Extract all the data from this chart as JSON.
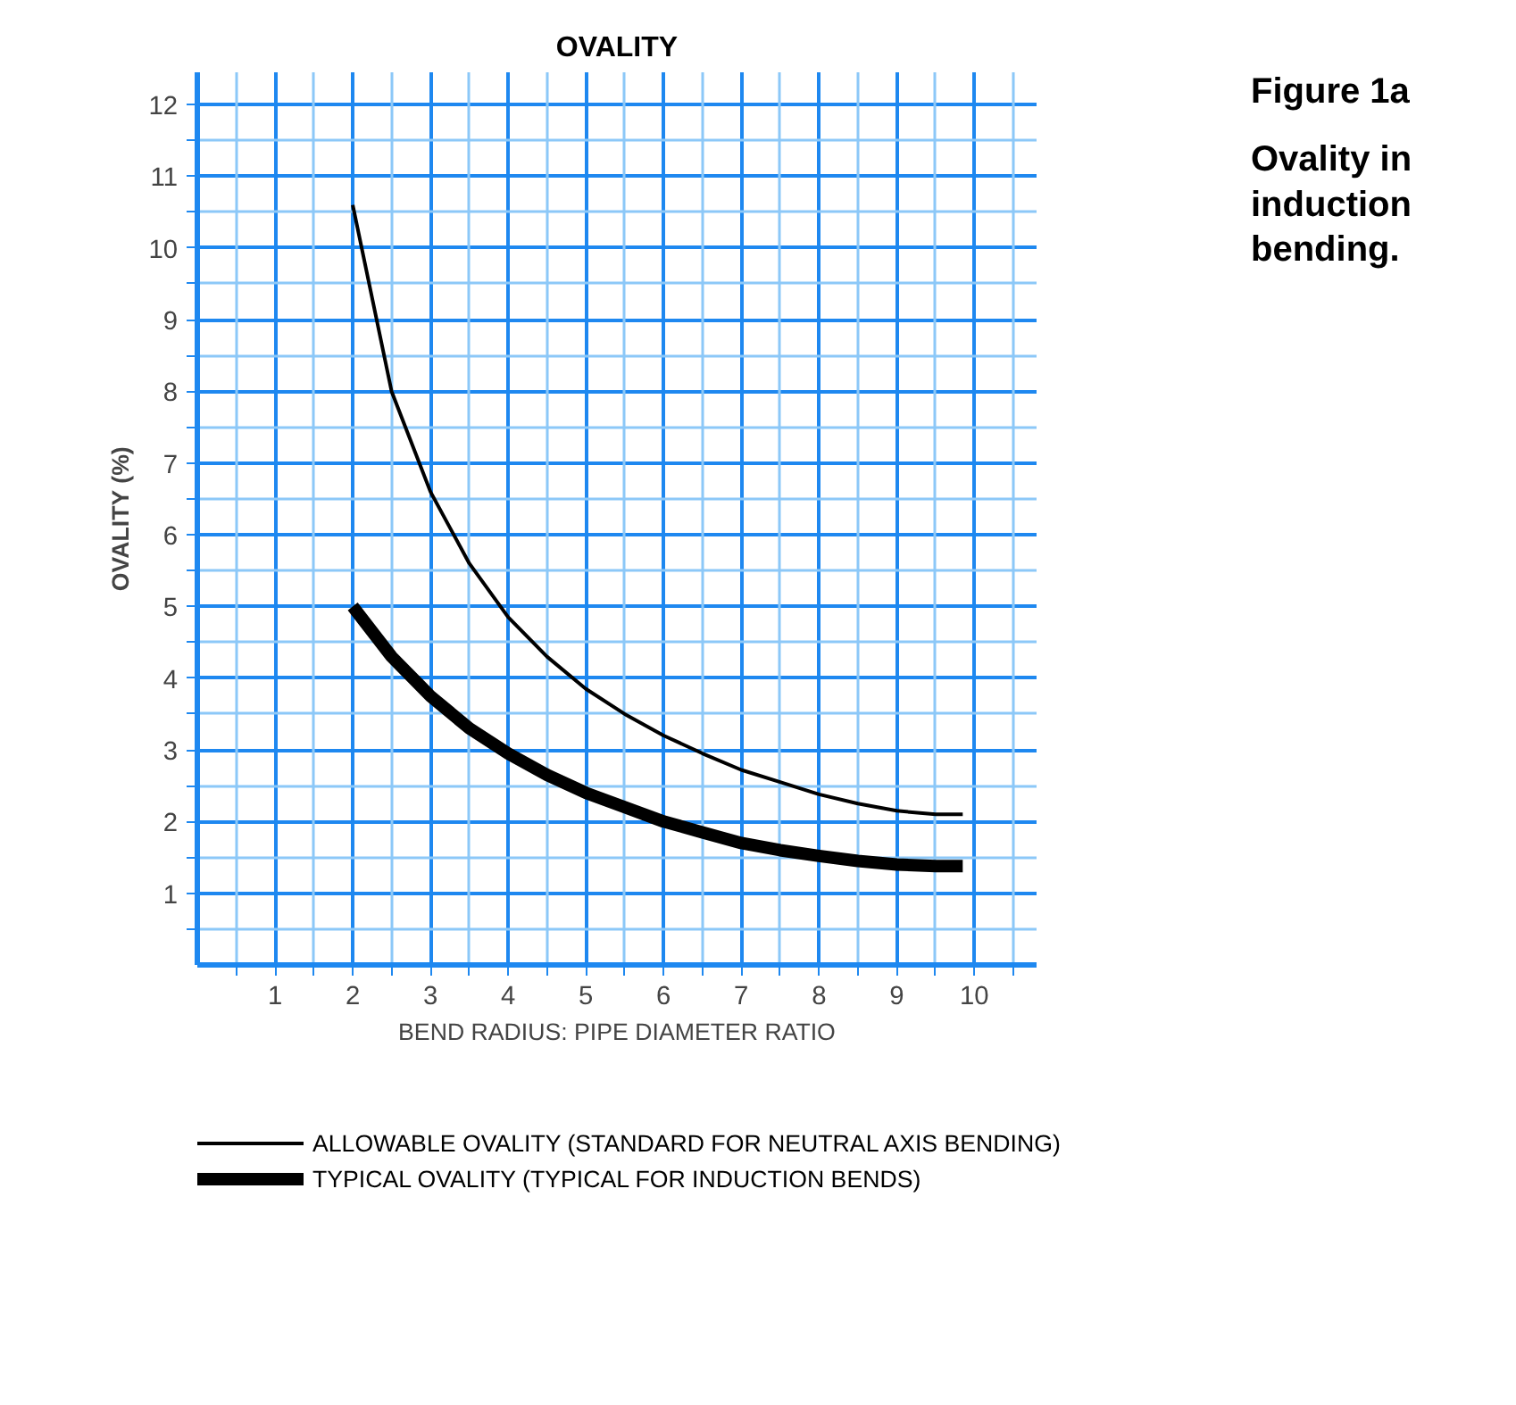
{
  "chart_data": {
    "type": "line",
    "title": "OVALITY",
    "xlabel": "BEND RADIUS: PIPE DIAMETER RATIO",
    "ylabel": "OVALITY (%)",
    "annotations": [
      "Figure 1a",
      "Ovality in induction bending."
    ],
    "xlim": [
      0,
      10.8
    ],
    "ylim": [
      0,
      12.45
    ],
    "xticks": [
      {
        "value": 0.5,
        "label": null
      },
      1,
      {
        "value": 1.5,
        "label": null
      },
      2,
      {
        "value": 2.5,
        "label": null
      },
      3,
      {
        "value": 3.5,
        "label": null
      },
      4,
      {
        "value": 4.5,
        "label": null
      },
      5,
      {
        "value": 5.5,
        "label": null
      },
      6,
      {
        "value": 6.5,
        "label": null
      },
      7,
      {
        "value": 7.5,
        "label": null
      },
      8,
      {
        "value": 8.5,
        "label": null
      },
      9,
      {
        "value": 9.5,
        "label": null
      },
      10,
      {
        "value": 10.5,
        "label": null
      }
    ],
    "yticks": [
      {
        "value": 0.5,
        "label": null
      },
      1,
      {
        "value": 1.5,
        "label": null
      },
      2,
      {
        "value": 2.5,
        "label": null
      },
      3,
      {
        "value": 3.5,
        "label": null
      },
      4,
      {
        "value": 4.5,
        "label": null
      },
      5,
      {
        "value": 5.5,
        "label": null
      },
      6,
      {
        "value": 6.5,
        "label": null
      },
      7,
      {
        "value": 7.5,
        "label": null
      },
      8,
      {
        "value": 8.5,
        "label": null
      },
      9,
      {
        "value": 9.5,
        "label": null
      },
      10,
      {
        "value": 10.5,
        "label": null
      },
      11,
      {
        "value": 11.5,
        "label": null
      },
      12
    ],
    "grid": true,
    "legend": "bottom",
    "marker": "none",
    "line_style": "solid",
    "x": [
      2,
      2.5,
      3,
      3.5,
      4,
      4.5,
      5,
      5.5,
      6,
      6.5,
      7,
      7.5,
      8,
      8.5,
      9,
      9.5,
      9.85
    ],
    "series": [
      {
        "name": "ALLOWABLE OVALITY (STANDARD FOR NEUTRAL AXIS BENDING)",
        "color": "#000000",
        "values": [
          10.6,
          8.0,
          6.6,
          5.6,
          4.85,
          4.3,
          3.85,
          3.5,
          3.2,
          2.95,
          2.72,
          2.55,
          2.38,
          2.25,
          2.15,
          2.1,
          2.1
        ]
      },
      {
        "name": "TYPICAL OVALITY (TYPICAL FOR INDUCTION BENDS)",
        "color": "#000000",
        "values": [
          5.0,
          4.3,
          3.75,
          3.3,
          2.95,
          2.65,
          2.4,
          2.2,
          2.0,
          1.85,
          1.7,
          1.6,
          1.52,
          1.45,
          1.4,
          1.38,
          1.38
        ]
      }
    ]
  }
}
